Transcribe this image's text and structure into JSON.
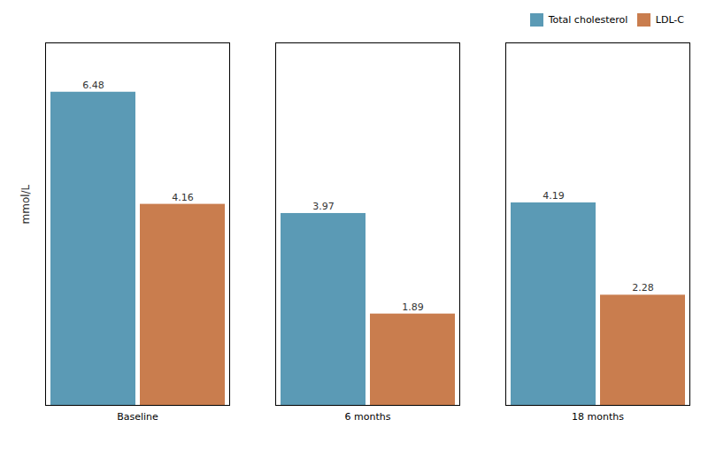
{
  "chart_data": {
    "type": "bar",
    "categories": [
      "Baseline",
      "6 months",
      "18 months"
    ],
    "series": [
      {
        "name": "Total cholesterol",
        "color": "#5b9ab5",
        "values": [
          6.48,
          3.97,
          4.19
        ]
      },
      {
        "name": "LDL-C",
        "color": "#c97d4e",
        "values": [
          4.16,
          1.89,
          2.28
        ]
      }
    ],
    "ylabel": "mmol/L",
    "ylim": [
      0,
      7.5
    ],
    "yticks": [],
    "grid": false,
    "data_labels": true,
    "tick_labels": "x",
    "legend": "upper right"
  }
}
